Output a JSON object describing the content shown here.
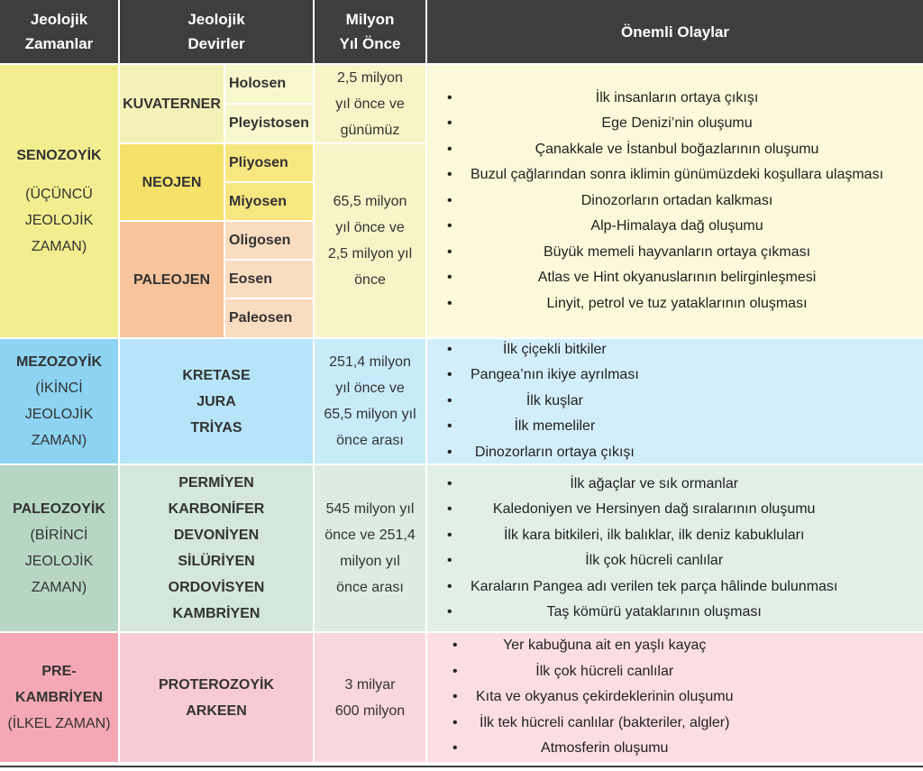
{
  "header": {
    "col1": [
      "Jeolojik",
      "Zamanlar"
    ],
    "col2": [
      "Jeolojik",
      "Devirler"
    ],
    "col3": [
      "Milyon",
      "Yıl Önce"
    ],
    "col4": "Önemli Olaylar"
  },
  "senozoyik": {
    "era": "SENOZOYİK",
    "era_sub": [
      "(ÜÇÜNCÜ",
      "JEOLOJİK",
      "ZAMAN)"
    ],
    "periods": {
      "kuvaterner": "KUVATERNER",
      "neojen": "NEOJEN",
      "paleojen": "PALEOJEN"
    },
    "epochs": [
      "Holosen",
      "Pleyistosen",
      "Pliyosen",
      "Miyosen",
      "Oligosen",
      "Eosen",
      "Paleosen"
    ],
    "mya_kuvaterner": [
      "2,5 milyon",
      "yıl önce ve",
      "günümüz"
    ],
    "mya_tersiyer": [
      "65,5 milyon",
      "yıl önce ve",
      "2,5 milyon yıl",
      "önce"
    ],
    "events": [
      "İlk insanların ortaya çıkışı",
      "Ege Denizi’nin oluşumu",
      "Çanakkale ve İstanbul boğazlarının oluşumu",
      "Buzul çağlarından sonra iklimin günümüzdeki koşullara ulaşması",
      "Dinozorların ortadan kalkması",
      "Alp-Himalaya dağ oluşumu",
      "Büyük memeli hayvanların ortaya çıkması",
      "Atlas ve Hint okyanuslarının belirginleşmesi",
      "Linyit, petrol ve tuz yataklarının oluşması"
    ]
  },
  "mezozoyik": {
    "era": "MEZOZOYİK",
    "era_sub": [
      "(İKİNCİ",
      "JEOLOJİK",
      "ZAMAN)"
    ],
    "periods": [
      "KRETASE",
      "JURA",
      "TRİYAS"
    ],
    "mya": [
      "251,4 milyon",
      "yıl önce ve",
      "65,5 milyon yıl",
      "önce arası"
    ],
    "events": [
      "İlk çiçekli bitkiler",
      "Pangea’nın ikiye ayrılması",
      "İlk kuşlar",
      "İlk memeliler",
      "Dinozorların ortaya çıkışı"
    ]
  },
  "paleozoyik": {
    "era": "PALEOZOYİK",
    "era_sub": [
      "(BİRİNCİ",
      "JEOLOJİK",
      "ZAMAN)"
    ],
    "periods": [
      "PERMİYEN",
      "KARBONİFER",
      "DEVONİYEN",
      "SİLÜRİYEN",
      "ORDOVİSYEN",
      "KAMBRİYEN"
    ],
    "mya": [
      "545 milyon yıl",
      "önce ve 251,4",
      "milyon yıl",
      "önce arası"
    ],
    "events": [
      "İlk ağaçlar ve sık ormanlar",
      "Kaledoniyen ve Hersinyen dağ sıralarının oluşumu",
      "İlk kara bitkileri, ilk balıklar, ilk deniz kabukluları",
      "İlk çok hücreli canlılar",
      "Karaların Pangea adı verilen tek parça hâlinde bulunması",
      "Taş kömürü yataklarının oluşması"
    ]
  },
  "prekambriyen": {
    "era": [
      "PRE-",
      "KAMBRİYEN"
    ],
    "era_sub": "(İLKEL ZAMAN)",
    "periods": [
      "PROTEROZOYİK",
      "ARKEEN"
    ],
    "mya": [
      "3 milyar",
      "600 milyon"
    ],
    "events": [
      "Yer kabuğuna ait en yaşlı kayaç",
      "İlk çok hücreli canlılar",
      "Kıta ve okyanus çekirdeklerinin oluşumu",
      "İlk tek hücreli canlılar (bakteriler, algler)",
      "Atmosferin oluşumu"
    ]
  },
  "colors": {
    "header": "#3e3e3e",
    "senozoyik_era": "#f2ee8f",
    "kuvaterner": "#f3f1b7",
    "holosen": "#f8f6cc",
    "neojen": "#f5e26a",
    "pliyosen": "#f8e681",
    "paleojen": "#f7c49c",
    "paleojen_epoch": "#fadcc0",
    "senozoyik_mya": "#f7f4c8",
    "senozoyik_events": "#fbf9d9",
    "mezozoyik_era": "#8dd3f2",
    "mezozoyik_periods": "#b7e4f8",
    "mezozoyik_mya": "#c8ebfa",
    "mezozoyik_events": "#d3eefb",
    "paleozoyik_era": "#b7d7c4",
    "paleozoyik_periods": "#d3e7da",
    "paleozoyik_mya": "#dcece2",
    "paleozoyik_events": "#e2efe7",
    "prekambriyen_era": "#f4a7b5",
    "prekambriyen_periods": "#f8cbd4",
    "prekambriyen_mya": "#fad6dd",
    "prekambriyen_events": "#fbdde3"
  }
}
